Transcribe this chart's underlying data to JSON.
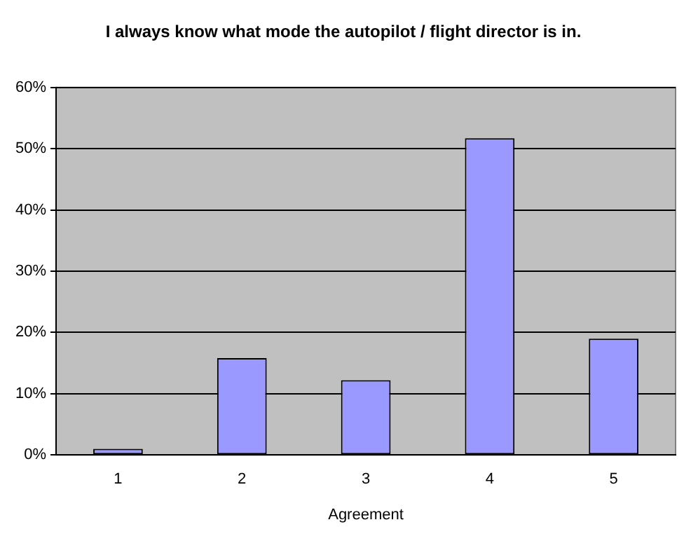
{
  "chart_data": {
    "type": "bar",
    "title": "I always know what mode the autopilot / flight director is in.",
    "xlabel": "Agreement",
    "categories": [
      "1",
      "2",
      "3",
      "4",
      "5"
    ],
    "values": [
      1,
      15.8,
      12.2,
      51.7,
      19.0
    ],
    "color": "#9999ff",
    "ylim": [
      0,
      60
    ],
    "yticks": [
      {
        "value": 0,
        "label": "0%"
      },
      {
        "value": 10,
        "label": "10%"
      },
      {
        "value": 20,
        "label": "20%"
      },
      {
        "value": 30,
        "label": "30%"
      },
      {
        "value": 40,
        "label": "40%"
      },
      {
        "value": 50,
        "label": "50%"
      },
      {
        "value": 60,
        "label": "60%"
      }
    ],
    "grid": "y",
    "legend": false
  }
}
